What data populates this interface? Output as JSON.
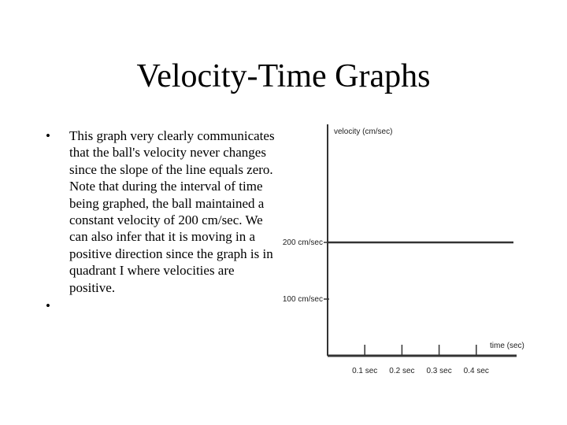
{
  "slide": {
    "title": "Velocity-Time Graphs",
    "bullets": [
      "This graph very clearly communicates that the ball's velocity never changes since the slope of the line equals zero. Note that during the interval of time being graphed, the ball maintained a constant velocity of 200 cm/sec. We can also infer that it is moving in a positive direction since the graph is in quadrant I where velocities are positive.",
      ""
    ]
  },
  "chart_data": {
    "type": "line",
    "xlabel": "time (sec)",
    "ylabel": "velocity (cm/sec)",
    "x_ticks": [
      {
        "value": 0.1,
        "label": "0.1 sec"
      },
      {
        "value": 0.2,
        "label": "0.2 sec"
      },
      {
        "value": 0.3,
        "label": "0.3 sec"
      },
      {
        "value": 0.4,
        "label": "0.4 sec"
      }
    ],
    "y_ticks": [
      {
        "value": 100,
        "label": "100 cm/sec"
      },
      {
        "value": 200,
        "label": "200 cm/sec"
      }
    ],
    "xlim": [
      0,
      0.5
    ],
    "ylim": [
      0,
      400
    ],
    "grid": false,
    "series": [
      {
        "x": [
          0,
          0.5
        ],
        "y": [
          200,
          200
        ]
      }
    ],
    "line_color": "#333333"
  }
}
